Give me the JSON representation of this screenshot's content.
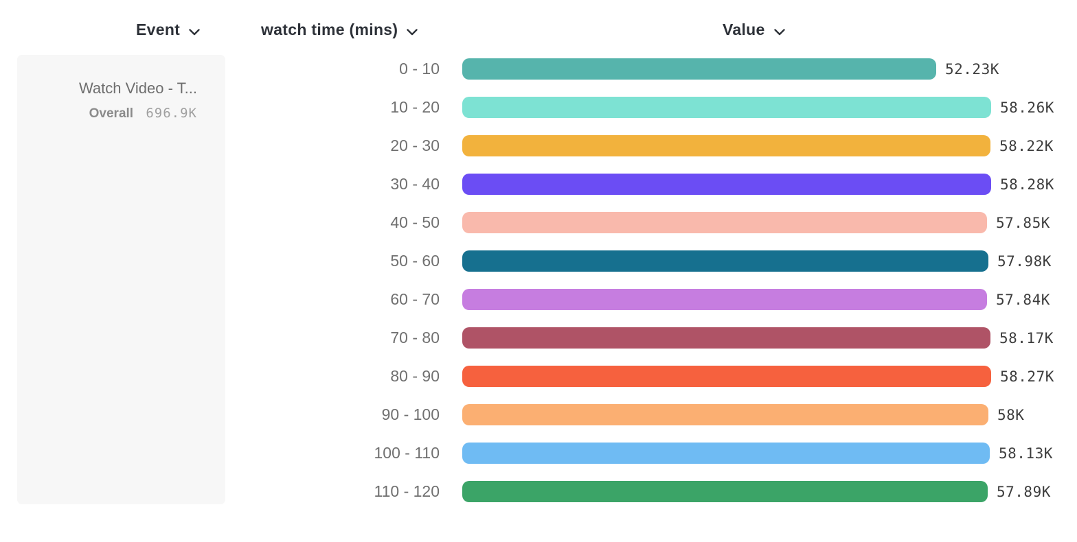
{
  "columns": {
    "event_label": "Event",
    "breakdown_label": "watch time (mins)",
    "value_label": "Value"
  },
  "icons": {
    "dropdown": "chevron-down"
  },
  "event_panel": {
    "event_name": "Watch Video - T...",
    "overall_label": "Overall",
    "overall_value": "696.9K"
  },
  "chart_data": {
    "type": "bar",
    "orientation": "horizontal",
    "title": "",
    "xlabel": "Value",
    "ylabel": "watch time (mins)",
    "categories": [
      "0 - 10",
      "10 - 20",
      "20 - 30",
      "30 - 40",
      "40 - 50",
      "50 - 60",
      "60 - 70",
      "70 - 80",
      "80 - 90",
      "90 - 100",
      "100 - 110",
      "110 - 120"
    ],
    "values": [
      52230,
      58260,
      58220,
      58280,
      57850,
      57980,
      57840,
      58170,
      58270,
      58000,
      58130,
      57890
    ],
    "value_labels": [
      "52.23K",
      "58.26K",
      "58.22K",
      "58.28K",
      "57.85K",
      "57.98K",
      "57.84K",
      "58.17K",
      "58.27K",
      "58K",
      "58.13K",
      "57.89K"
    ],
    "bar_colors": [
      "#56b4ac",
      "#7de2d3",
      "#f2b23d",
      "#6b4df4",
      "#f9b9ac",
      "#16708f",
      "#c67de0",
      "#af5366",
      "#f6613e",
      "#fbaf72",
      "#6fbbf3",
      "#3ba467"
    ],
    "xlim": [
      0,
      58280
    ],
    "grid": false,
    "legend": false
  }
}
